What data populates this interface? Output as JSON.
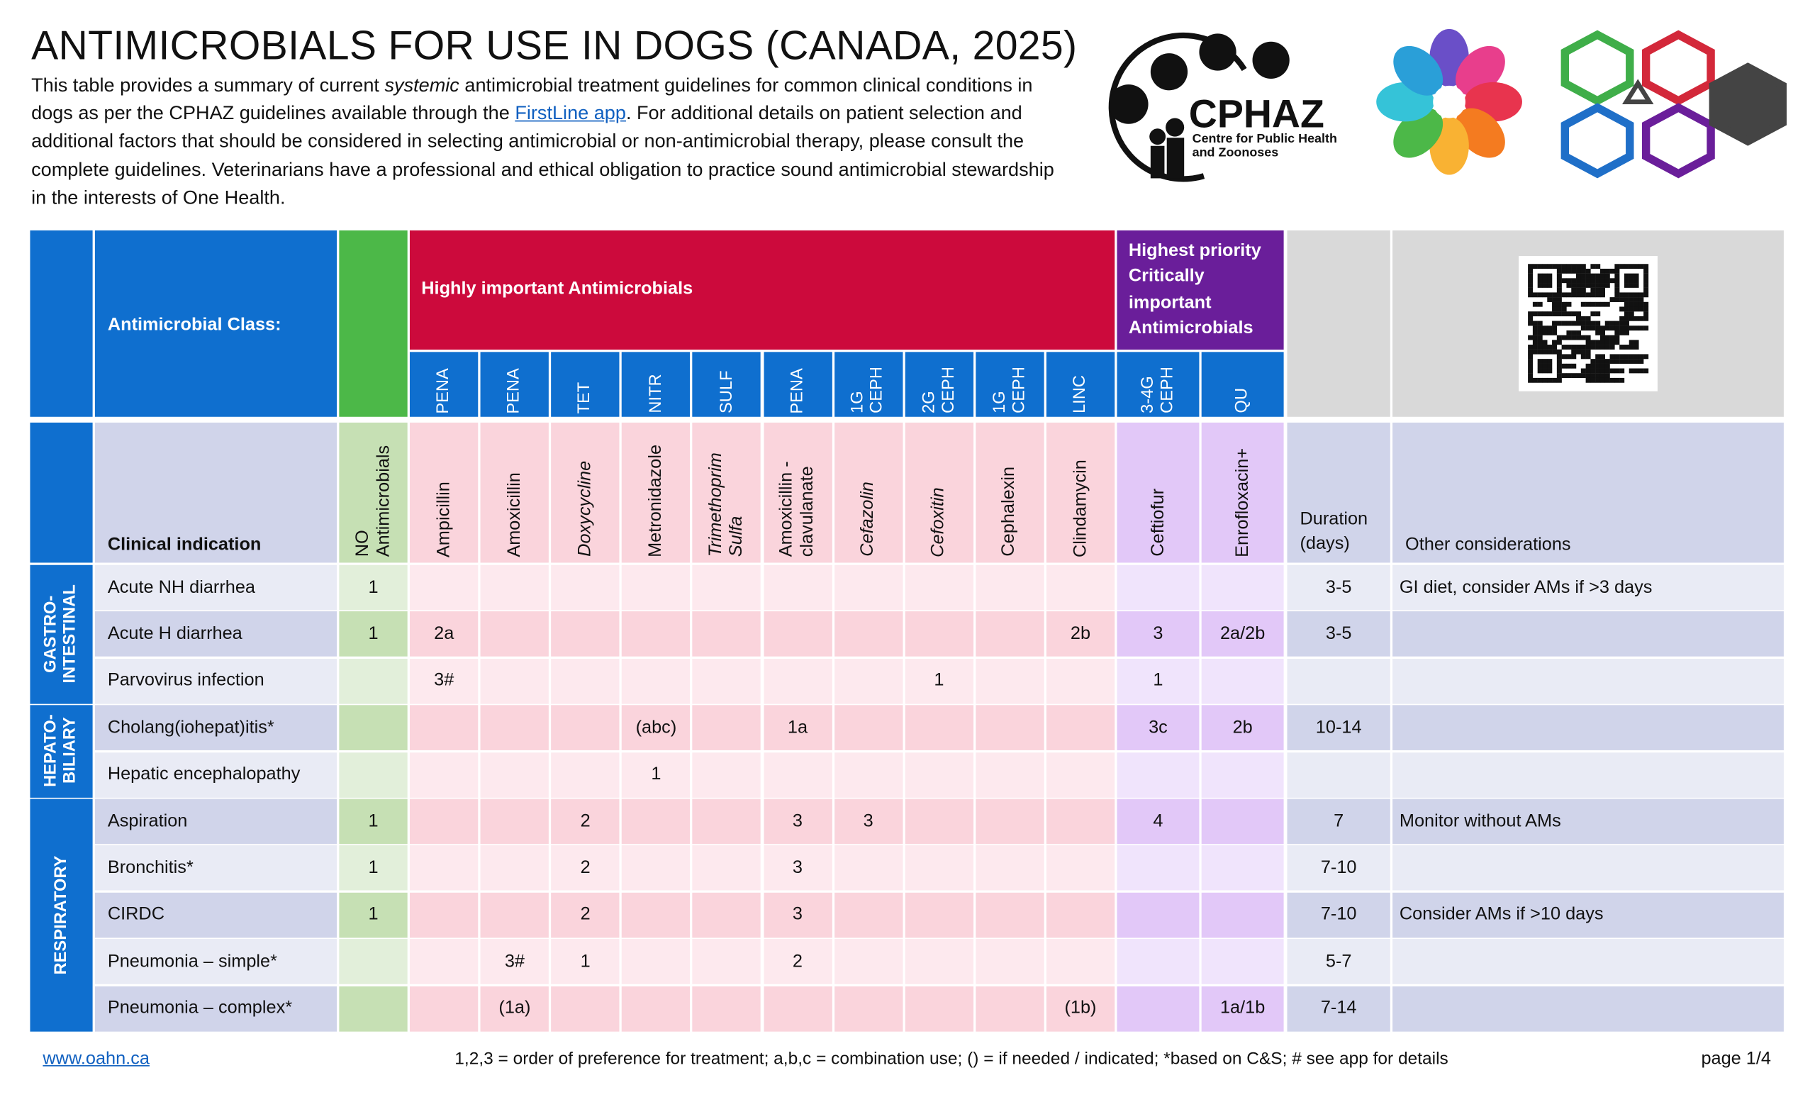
{
  "header": {
    "title": "ANTIMICROBIALS FOR USE IN DOGS (CANADA, 2025)",
    "description": [
      "This table provides a summary of current ",
      "systemic",
      " antimicrobial treatment guidelines for common clinical conditions in dogs as per the CPHAZ guidelines available through the ",
      "FirstLine app",
      ".  For additional details on patient selection and additional factors that should be considered in selecting antimicrobial or non-antimicrobial therapy, please consult the complete guidelines. Veterinarians have a professional and ethical obligation to practice sound antimicrobial stewardship in the interests of One Health."
    ]
  },
  "logos": {
    "cphaz": "CPHAZ",
    "cphaz_sub": [
      "Centre for Public Health",
      "and Zoonoses"
    ]
  },
  "table": {
    "class_label": "Antimicrobial Class:",
    "indication_label": "Clinical indication",
    "no_label": "NO Antimicrobials",
    "duration_label": "Duration (days)",
    "other_label": "Other considerations",
    "groups": [
      {
        "label": "Highly important Antimicrobials",
        "color": "#cc0a3c",
        "columns": [
          {
            "class": "PENA",
            "drug": "Ampicillin",
            "italic": false
          },
          {
            "class": "PENA",
            "drug": "Amoxicillin",
            "italic": false
          },
          {
            "class": "TET",
            "drug": "Doxycycline",
            "italic": true
          },
          {
            "class": "NITR",
            "drug": "Metronidazole",
            "italic": false
          },
          {
            "class": "SULF",
            "drug": "Trimethoprim Sulfa",
            "italic": true
          },
          {
            "class": "PENA",
            "drug": "Amoxicillin - clavulanate",
            "italic": false
          },
          {
            "class": "1G CEPH",
            "drug": "Cefazolin",
            "italic": true
          },
          {
            "class": "2G CEPH",
            "drug": "Cefoxitin",
            "italic": true
          },
          {
            "class": "1G CEPH",
            "drug": "Cephalexin",
            "italic": false
          },
          {
            "class": "LINC",
            "drug": "Clindamycin",
            "italic": false
          }
        ]
      },
      {
        "label": "Highest priority Critically important Antimicrobials",
        "color": "#6a1e9a",
        "columns": [
          {
            "class": "3-4G CEPH",
            "drug": "Ceftiofur",
            "italic": false
          },
          {
            "class": "QU",
            "drug": "Enrofloxacin+",
            "italic": false
          }
        ]
      }
    ],
    "sections": [
      {
        "label": "GASTRO- INTESTINAL",
        "rows": [
          {
            "indication": "Acute NH diarrhea",
            "cells": [
              1,
              null,
              null,
              null,
              null,
              null,
              null,
              null,
              null,
              null,
              null,
              null,
              null
            ],
            "duration": "3-5",
            "other": "GI diet, consider AMs if >3 days"
          },
          {
            "indication": "Acute H diarrhea",
            "cells": [
              1,
              "2a",
              null,
              null,
              null,
              null,
              null,
              null,
              null,
              null,
              "2b",
              3,
              "2a/2b"
            ],
            "duration": "3-5",
            "other": null
          },
          {
            "indication": "Parvovirus infection",
            "cells": [
              null,
              "3#",
              null,
              null,
              null,
              null,
              null,
              null,
              1,
              null,
              null,
              1,
              null
            ],
            "duration": null,
            "other": null
          }
        ]
      },
      {
        "label": "HEPATO- BILIARY",
        "rows": [
          {
            "indication": "Cholang(iohepat)itis*",
            "cells": [
              null,
              null,
              null,
              null,
              "(abc)",
              null,
              "1a",
              null,
              null,
              null,
              null,
              "3c",
              "2b"
            ],
            "duration": "10-14",
            "other": null
          },
          {
            "indication": "Hepatic encephalopathy",
            "cells": [
              null,
              null,
              null,
              null,
              1,
              null,
              null,
              null,
              null,
              null,
              null,
              null,
              null
            ],
            "duration": null,
            "other": null
          }
        ]
      },
      {
        "label": "RESPIRATORY",
        "rows": [
          {
            "indication": "Aspiration",
            "cells": [
              1,
              null,
              null,
              2,
              null,
              null,
              3,
              3,
              null,
              null,
              null,
              4,
              null
            ],
            "duration": 7,
            "other": "Monitor without AMs"
          },
          {
            "indication": "Bronchitis*",
            "cells": [
              1,
              null,
              null,
              2,
              null,
              null,
              3,
              null,
              null,
              null,
              null,
              null,
              null
            ],
            "duration": "7-10",
            "other": null
          },
          {
            "indication": "CIRDC",
            "cells": [
              1,
              null,
              null,
              2,
              null,
              null,
              3,
              null,
              null,
              null,
              null,
              null,
              null
            ],
            "duration": "7-10",
            "other": "Consider AMs if >10 days"
          },
          {
            "indication": "Pneumonia – simple*",
            "cells": [
              null,
              null,
              "3#",
              1,
              null,
              null,
              2,
              null,
              null,
              null,
              null,
              null,
              null
            ],
            "duration": "5-7",
            "other": null
          },
          {
            "indication": "Pneumonia – complex*",
            "cells": [
              null,
              null,
              "(1a)",
              null,
              null,
              null,
              null,
              null,
              null,
              null,
              "(1b)",
              null,
              "1a/1b"
            ],
            "duration": "7-14",
            "other": null
          }
        ]
      }
    ]
  },
  "footer": {
    "link": "www.oahn.ca",
    "legend": "1,2,3 = order of preference for treatment;  a,b,c = combination use; () = if needed / indicated; *based on C&S; # see app for details",
    "page": "page 1/4"
  }
}
